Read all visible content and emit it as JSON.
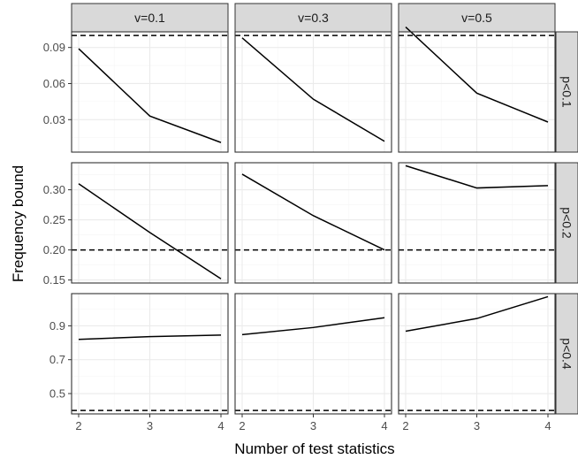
{
  "chart_data": {
    "type": "line",
    "xlabel": "Number of test statistics",
    "ylabel": "Frequency bound",
    "x": [
      2,
      3,
      4
    ],
    "x_ticks": [
      "2",
      "3",
      "4"
    ],
    "columns": [
      "v=0.1",
      "v=0.3",
      "v=0.5"
    ],
    "rows": [
      {
        "label": "p<0.1",
        "ylim": [
          0.003,
          0.103
        ],
        "y_ticks": [
          0.03,
          0.06,
          0.09
        ],
        "y_tick_labels": [
          "0.03",
          "0.06",
          "0.09"
        ],
        "reference": 0.1,
        "series": [
          {
            "column": "v=0.1",
            "values": [
              0.089,
              0.033,
              0.011
            ]
          },
          {
            "column": "v=0.3",
            "values": [
              0.098,
              0.047,
              0.012
            ]
          },
          {
            "column": "v=0.5",
            "values": [
              0.107,
              0.052,
              0.028
            ]
          }
        ]
      },
      {
        "label": "p<0.2",
        "ylim": [
          0.145,
          0.345
        ],
        "y_ticks": [
          0.15,
          0.2,
          0.25,
          0.3
        ],
        "y_tick_labels": [
          "0.15",
          "0.20",
          "0.25",
          "0.30"
        ],
        "reference": 0.2,
        "series": [
          {
            "column": "v=0.1",
            "values": [
              0.31,
              0.229,
              0.152
            ]
          },
          {
            "column": "v=0.3",
            "values": [
              0.326,
              0.257,
              0.2
            ]
          },
          {
            "column": "v=0.5",
            "values": [
              0.34,
              0.303,
              0.307
            ]
          }
        ]
      },
      {
        "label": "p<0.4",
        "ylim": [
          0.38,
          1.09
        ],
        "y_ticks": [
          0.5,
          0.7,
          0.9
        ],
        "y_tick_labels": [
          "0.5",
          "0.7",
          "0.9"
        ],
        "reference": 0.4,
        "series": [
          {
            "column": "v=0.1",
            "values": [
              0.82,
              0.836,
              0.845
            ]
          },
          {
            "column": "v=0.3",
            "values": [
              0.848,
              0.89,
              0.948
            ]
          },
          {
            "column": "v=0.5",
            "values": [
              0.868,
              0.943,
              1.072
            ]
          }
        ]
      }
    ],
    "reference_style": "dashed",
    "grid": true,
    "legend": "none"
  }
}
